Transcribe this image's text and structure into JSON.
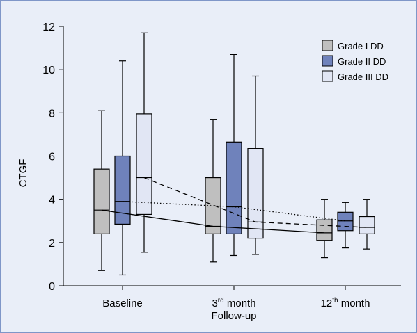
{
  "chart_data": {
    "type": "box",
    "ylabel": "CTGF",
    "ylim": [
      0,
      12
    ],
    "yticks": [
      0,
      2,
      4,
      6,
      8,
      10,
      12
    ],
    "grid": false,
    "legend_placement": "top-right",
    "groups": [
      {
        "label": "Baseline",
        "sup": "",
        "label_suffix": "",
        "second_line": ""
      },
      {
        "label": "3",
        "sup": "rd",
        "label_suffix": " month",
        "second_line": "Follow-up"
      },
      {
        "label": "12",
        "sup": "th",
        "label_suffix": " month",
        "second_line": ""
      }
    ],
    "series": [
      {
        "name": "Grade I DD",
        "color": "#bfbfbf",
        "boxes": [
          {
            "min": 0.7,
            "q1": 2.4,
            "median": 3.5,
            "q3": 5.4,
            "max": 8.1
          },
          {
            "min": 1.1,
            "q1": 2.4,
            "median": 2.75,
            "q3": 5.0,
            "max": 7.7
          },
          {
            "min": 1.3,
            "q1": 2.1,
            "median": 2.45,
            "q3": 3.05,
            "max": 4.0
          }
        ]
      },
      {
        "name": "Grade II DD",
        "color": "#6f82bb",
        "boxes": [
          {
            "min": 0.5,
            "q1": 2.85,
            "median": 3.9,
            "q3": 6.0,
            "max": 10.4
          },
          {
            "min": 1.4,
            "q1": 2.4,
            "median": 3.65,
            "q3": 6.65,
            "max": 10.7
          },
          {
            "min": 1.75,
            "q1": 2.55,
            "median": 3.0,
            "q3": 3.4,
            "max": 3.85
          }
        ]
      },
      {
        "name": "Grade III DD",
        "color": "#e1e6f4",
        "boxes": [
          {
            "min": 1.55,
            "q1": 3.3,
            "median": 5.0,
            "q3": 7.95,
            "max": 11.7
          },
          {
            "min": 1.45,
            "q1": 2.2,
            "median": 2.95,
            "q3": 6.35,
            "max": 9.7
          },
          {
            "min": 1.7,
            "q1": 2.4,
            "median": 2.7,
            "q3": 3.2,
            "max": 4.0
          }
        ]
      }
    ],
    "trend_lines": [
      {
        "series": "Grade I DD",
        "style": "solid"
      },
      {
        "series": "Grade II DD",
        "style": "dotted"
      },
      {
        "series": "Grade III DD",
        "style": "dashed"
      }
    ]
  }
}
